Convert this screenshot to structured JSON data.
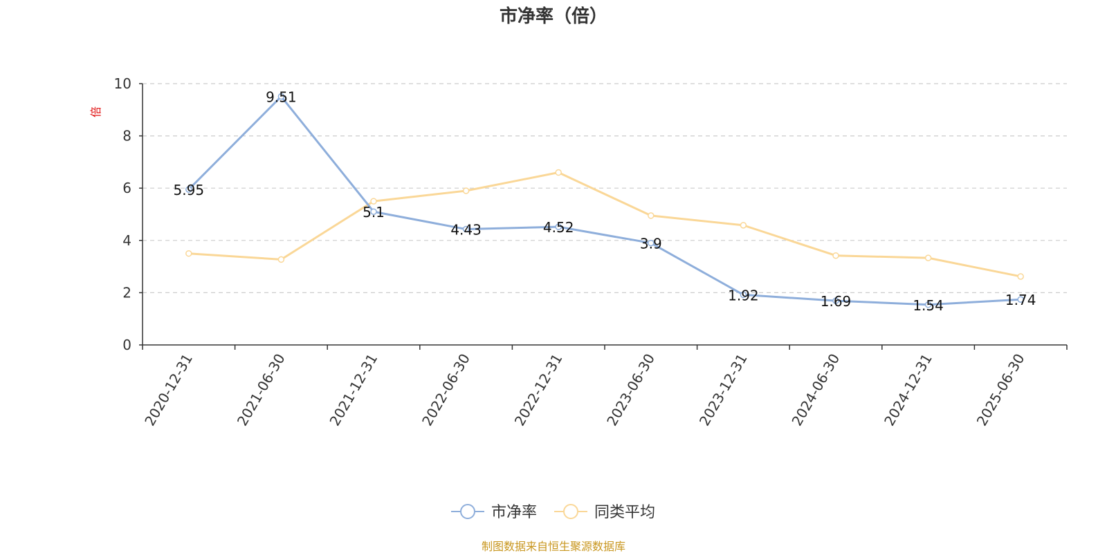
{
  "chart_data": {
    "type": "line",
    "title": "市净率（倍）",
    "ylabel": "倍",
    "ylim": [
      0,
      10
    ],
    "yticks": [
      0,
      2,
      4,
      6,
      8,
      10
    ],
    "grid": true,
    "legend_position": "bottom",
    "categories": [
      "2020-12-31",
      "2021-06-30",
      "2021-12-31",
      "2022-06-30",
      "2022-12-31",
      "2023-06-30",
      "2023-12-31",
      "2024-06-30",
      "2024-12-31",
      "2025-06-30"
    ],
    "series": [
      {
        "name": "市净率",
        "color": "#8eaedb",
        "values": [
          5.95,
          9.51,
          5.1,
          4.43,
          4.52,
          3.9,
          1.92,
          1.69,
          1.54,
          1.74
        ],
        "labels": [
          "5.95",
          "9.51",
          "5.1",
          "4.43",
          "4.52",
          "3.9",
          "1.92",
          "1.69",
          "1.54",
          "1.74"
        ]
      },
      {
        "name": "同类平均",
        "color": "#fad797",
        "values": [
          3.5,
          3.27,
          5.5,
          5.9,
          6.6,
          4.95,
          4.58,
          3.42,
          3.33,
          2.62
        ]
      }
    ],
    "source": "制图数据来自恒生聚源数据库"
  }
}
